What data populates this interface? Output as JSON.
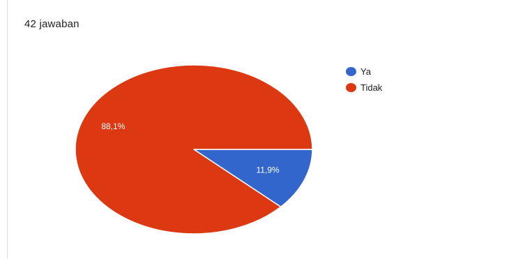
{
  "response_count": "42 jawaban",
  "chart_data": {
    "type": "pie",
    "title": "",
    "categories": [
      "Ya",
      "Tidak"
    ],
    "values": [
      11.9,
      88.1
    ],
    "labels": [
      "11,9%",
      "88,1%"
    ],
    "colors": [
      "#3366cc",
      "#dc3912"
    ],
    "legend_position": "right"
  },
  "legend": {
    "items": [
      {
        "label": "Ya",
        "color": "#3366cc"
      },
      {
        "label": "Tidak",
        "color": "#dc3912"
      }
    ]
  }
}
